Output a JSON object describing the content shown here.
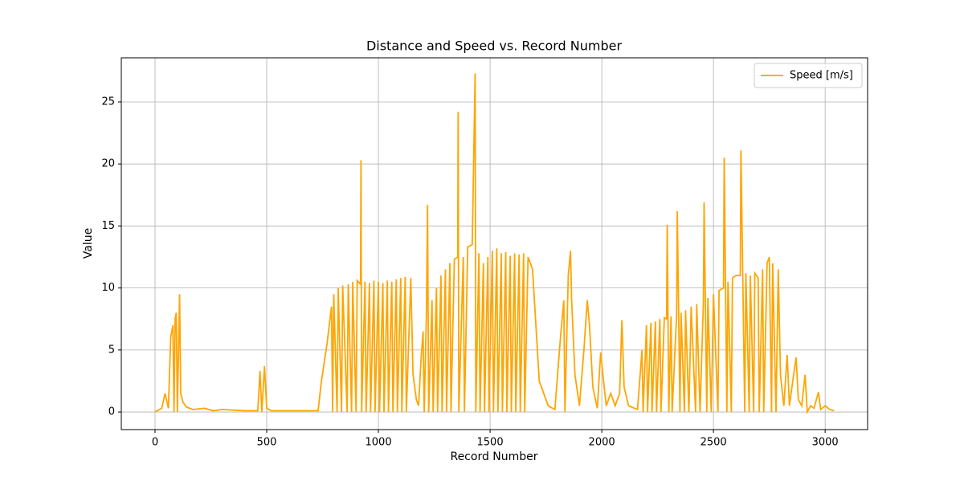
{
  "chart_data": {
    "type": "line",
    "title": "Distance and Speed vs. Record Number",
    "xlabel": "Record Number",
    "ylabel": "Value",
    "xlim": [
      -151,
      3190
    ],
    "ylim": [
      -1.42,
      28.56
    ],
    "xticks": [
      0,
      500,
      1000,
      1500,
      2000,
      2500,
      3000
    ],
    "yticks": [
      0,
      5,
      10,
      15,
      20,
      25
    ],
    "grid": true,
    "legend": "upper right",
    "x": [
      0,
      30,
      45,
      60,
      70,
      80,
      85,
      90,
      95,
      100,
      110,
      115,
      125,
      140,
      170,
      220,
      260,
      300,
      400,
      460,
      470,
      478,
      490,
      500,
      520,
      600,
      730,
      745,
      770,
      790,
      795,
      800,
      815,
      820,
      835,
      840,
      860,
      865,
      880,
      885,
      900,
      905,
      920,
      922,
      925,
      940,
      945,
      960,
      965,
      980,
      985,
      1000,
      1005,
      1020,
      1025,
      1040,
      1045,
      1060,
      1065,
      1080,
      1085,
      1100,
      1105,
      1120,
      1125,
      1145,
      1155,
      1170,
      1180,
      1190,
      1200,
      1205,
      1215,
      1220,
      1225,
      1240,
      1245,
      1260,
      1265,
      1280,
      1285,
      1300,
      1305,
      1320,
      1325,
      1340,
      1355,
      1357,
      1360,
      1380,
      1385,
      1400,
      1420,
      1433,
      1436,
      1450,
      1455,
      1470,
      1475,
      1490,
      1495,
      1510,
      1515,
      1530,
      1535,
      1550,
      1555,
      1570,
      1575,
      1590,
      1595,
      1610,
      1615,
      1630,
      1635,
      1650,
      1655,
      1670,
      1690,
      1720,
      1760,
      1790,
      1815,
      1830,
      1835,
      1850,
      1860,
      1865,
      1880,
      1900,
      1920,
      1935,
      1945,
      1960,
      1980,
      1995,
      2005,
      2020,
      2040,
      2060,
      2080,
      2090,
      2100,
      2120,
      2160,
      2180,
      2185,
      2200,
      2205,
      2220,
      2225,
      2240,
      2245,
      2260,
      2265,
      2280,
      2290,
      2293,
      2300,
      2310,
      2315,
      2335,
      2338,
      2350,
      2355,
      2370,
      2375,
      2390,
      2400,
      2420,
      2425,
      2440,
      2455,
      2458,
      2470,
      2475,
      2490,
      2500,
      2520,
      2525,
      2545,
      2548,
      2560,
      2565,
      2580,
      2585,
      2600,
      2620,
      2623,
      2640,
      2645,
      2660,
      2665,
      2680,
      2685,
      2700,
      2705,
      2720,
      2725,
      2740,
      2750,
      2760,
      2765,
      2780,
      2790,
      2800,
      2815,
      2830,
      2840,
      2855,
      2870,
      2880,
      2895,
      2910,
      2920,
      2935,
      2950,
      2970,
      2980,
      3000,
      3020,
      3040
    ],
    "series": [
      {
        "name": "Speed [m/s]",
        "color": "#ffa500",
        "values": [
          0,
          0.3,
          1.5,
          0.3,
          6,
          7,
          0,
          7.5,
          8,
          0,
          9.5,
          1.5,
          0.8,
          0.4,
          0.2,
          0.3,
          0.1,
          0.2,
          0.1,
          0.1,
          3.3,
          0,
          3.7,
          0.3,
          0.1,
          0.1,
          0.1,
          2.5,
          5.5,
          8.5,
          0,
          9.5,
          0,
          10,
          0,
          10.2,
          0,
          10.3,
          0,
          10.5,
          0,
          10.6,
          10.3,
          20.3,
          0,
          10.5,
          0,
          10.4,
          0,
          10.6,
          0,
          10.5,
          0,
          10.4,
          0,
          10.6,
          0,
          10.5,
          0,
          10.7,
          0,
          10.8,
          0,
          10.9,
          0,
          10.8,
          3,
          1,
          0.5,
          4,
          6.5,
          0,
          8,
          16.7,
          0,
          9,
          0,
          10,
          0,
          11,
          0,
          11.5,
          0,
          12,
          0,
          12.3,
          12.5,
          24.2,
          0,
          12.5,
          0,
          13.3,
          13.5,
          27.3,
          0,
          12.8,
          0,
          12,
          0,
          12.5,
          0,
          13,
          0,
          13.2,
          0,
          12.8,
          0,
          12.9,
          0,
          12.6,
          0,
          12.8,
          0,
          12.7,
          0,
          12.8,
          0,
          12.5,
          11.5,
          2.5,
          0.5,
          0.2,
          6,
          9,
          0,
          11,
          13,
          9,
          3,
          0.5,
          5,
          9,
          7,
          2,
          0.3,
          4.8,
          3,
          0.5,
          1.5,
          0.5,
          1.5,
          7.4,
          2,
          0.5,
          0.2,
          5,
          0,
          7,
          0,
          7.2,
          0,
          7.3,
          0,
          7.5,
          0,
          7.6,
          7.5,
          15.1,
          0,
          7.7,
          0,
          7.8,
          16.2,
          0,
          8,
          0,
          8.2,
          0,
          8.5,
          0,
          8.7,
          0,
          9,
          16.9,
          0,
          9.2,
          0,
          9.5,
          0,
          9.8,
          10,
          20.5,
          0,
          10.5,
          0,
          10.8,
          11,
          11,
          21.1,
          0,
          11.2,
          0,
          11,
          0,
          11.2,
          10.8,
          0,
          11.5,
          0,
          12,
          12.5,
          0,
          12,
          0,
          11.5,
          3,
          0.5,
          4.6,
          0.5,
          2.5,
          4.4,
          1,
          0.5,
          3,
          0,
          0.5,
          0.3,
          1.6,
          0.2,
          0.5,
          0.2,
          0.1
        ]
      }
    ]
  }
}
